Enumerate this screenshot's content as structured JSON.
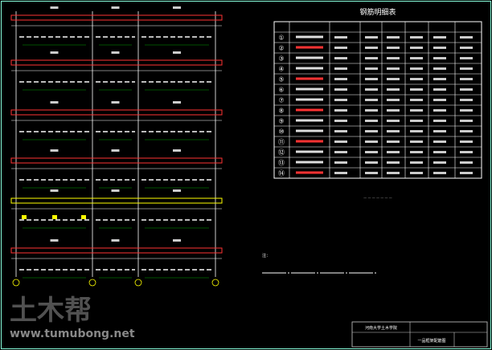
{
  "drawing": {
    "table": {
      "title": "钢筋明细表",
      "row_numbers": [
        "①",
        "②",
        "③",
        "④",
        "⑤",
        "⑥",
        "⑦",
        "⑧",
        "⑨",
        "⑩",
        "⑪",
        "⑫",
        "⑬",
        "⑭"
      ]
    },
    "title_block": {
      "school": "河南大学土木学院",
      "drawing_name": "一品框架配筋图"
    },
    "watermark": {
      "logo": "土木帮",
      "url": "www.tumubong.net"
    }
  }
}
